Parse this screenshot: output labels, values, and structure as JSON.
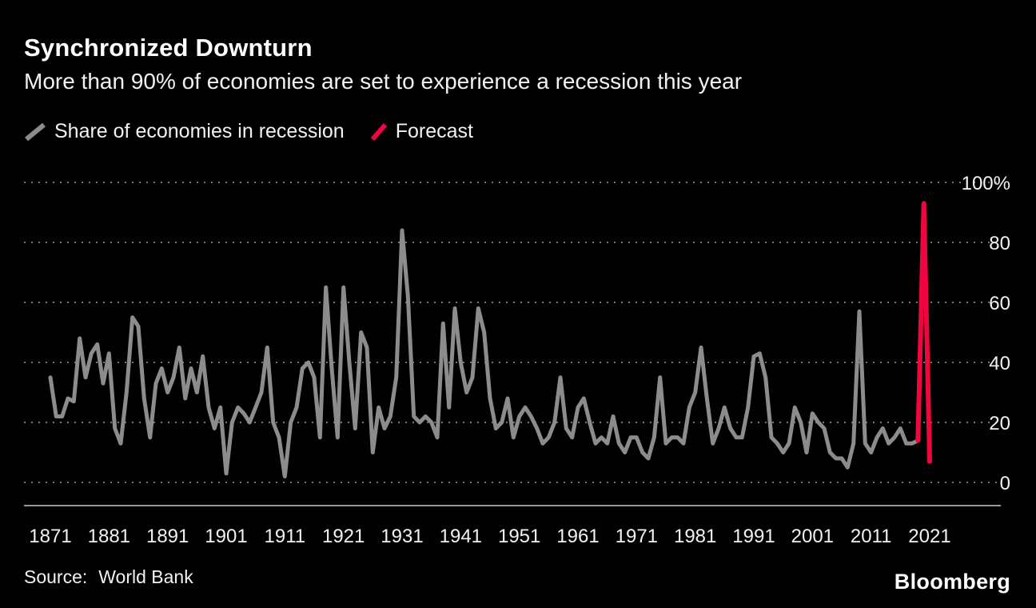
{
  "header": {
    "title": "Synchronized Downturn",
    "subtitle": "More than 90% of economies are set to experience a recession this year"
  },
  "legend": [
    {
      "label": "Share of economies in recession",
      "color": "#8c8c8c"
    },
    {
      "label": "Forecast",
      "color": "#f0063f"
    }
  ],
  "footer": {
    "source_label": "Source:",
    "source_value": "World Bank",
    "brand": "Bloomberg"
  },
  "colors": {
    "background": "#000000",
    "text": "#f2f2f2",
    "grid": "#777777",
    "axis": "#9a9a9a",
    "history_line": "#8c8c8c",
    "forecast_line": "#f0063f"
  },
  "chart_data": {
    "type": "line",
    "title": "Synchronized Downturn",
    "subtitle": "More than 90% of economies are set to experience a recession this year",
    "xlabel": "",
    "ylabel": "Share of economies in recession (%)",
    "xlim": [
      1871,
      2021
    ],
    "ylim": [
      0,
      100
    ],
    "grid": "horizontal-dotted",
    "legend_position": "top-left",
    "x_ticks": [
      1871,
      1881,
      1891,
      1901,
      1911,
      1921,
      1931,
      1941,
      1951,
      1961,
      1971,
      1981,
      1991,
      2001,
      2011,
      2021
    ],
    "y_ticks": [
      0,
      20,
      40,
      60,
      80,
      100
    ],
    "y_tick_labels": [
      "0",
      "20",
      "40",
      "60",
      "80",
      "100%"
    ],
    "series": [
      {
        "name": "Share of economies in recession",
        "color": "#8c8c8c",
        "width": 5,
        "x_start": 1871,
        "x_step": 1,
        "values": [
          35,
          22,
          22,
          28,
          27,
          48,
          35,
          43,
          46,
          33,
          43,
          18,
          13,
          30,
          55,
          52,
          28,
          15,
          33,
          38,
          30,
          35,
          45,
          28,
          38,
          30,
          42,
          25,
          18,
          25,
          3,
          20,
          25,
          23,
          20,
          25,
          30,
          45,
          20,
          15,
          2,
          20,
          25,
          38,
          40,
          35,
          15,
          65,
          38,
          15,
          65,
          40,
          18,
          50,
          45,
          10,
          25,
          18,
          22,
          35,
          84,
          62,
          22,
          20,
          22,
          20,
          15,
          53,
          25,
          58,
          40,
          30,
          35,
          58,
          50,
          28,
          18,
          20,
          28,
          15,
          22,
          25,
          22,
          18,
          13,
          15,
          20,
          35,
          18,
          15,
          25,
          28,
          20,
          13,
          15,
          13,
          22,
          13,
          10,
          15,
          15,
          10,
          8,
          15,
          35,
          13,
          15,
          15,
          13,
          25,
          30,
          45,
          28,
          13,
          18,
          25,
          18,
          15,
          15,
          25,
          42,
          43,
          35,
          15,
          13,
          10,
          13,
          25,
          20,
          10,
          23,
          20,
          18,
          10,
          8,
          8,
          5,
          13,
          57,
          13,
          10,
          15,
          18,
          13,
          15,
          18,
          13,
          13,
          14
        ]
      },
      {
        "name": "Forecast",
        "color": "#f0063f",
        "width": 6,
        "x": [
          2019,
          2020,
          2021
        ],
        "values": [
          14,
          93,
          7
        ]
      }
    ],
    "source": "World Bank"
  }
}
